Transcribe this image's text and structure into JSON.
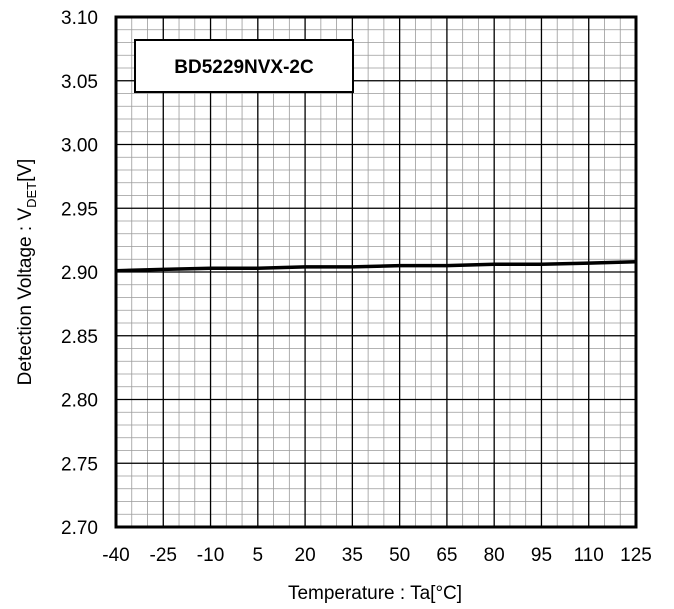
{
  "chart_data": {
    "type": "line",
    "title": "",
    "annotation": "BD5229NVX-2C",
    "xlabel": "Temperature : Ta[°C]",
    "ylabel": {
      "prefix": "Detection Voltage : V",
      "subscript": "DET",
      "suffix": "[V]"
    },
    "xlim": [
      -40,
      125
    ],
    "ylim": [
      2.7,
      3.1
    ],
    "xticks": [
      "-40",
      "-25",
      "-10",
      "5",
      "20",
      "35",
      "50",
      "65",
      "80",
      "95",
      "110",
      "125"
    ],
    "yticks": [
      "2.70",
      "2.75",
      "2.80",
      "2.85",
      "2.90",
      "2.95",
      "3.00",
      "3.05",
      "3.10"
    ],
    "grid": true,
    "series": [
      {
        "x": [
          -40,
          -25,
          -10,
          5,
          20,
          35,
          50,
          65,
          80,
          95,
          110,
          125
        ],
        "y": [
          2.901,
          2.902,
          2.903,
          2.903,
          2.904,
          2.904,
          2.905,
          2.905,
          2.906,
          2.906,
          2.907,
          2.908
        ],
        "color": "#000000"
      }
    ]
  }
}
